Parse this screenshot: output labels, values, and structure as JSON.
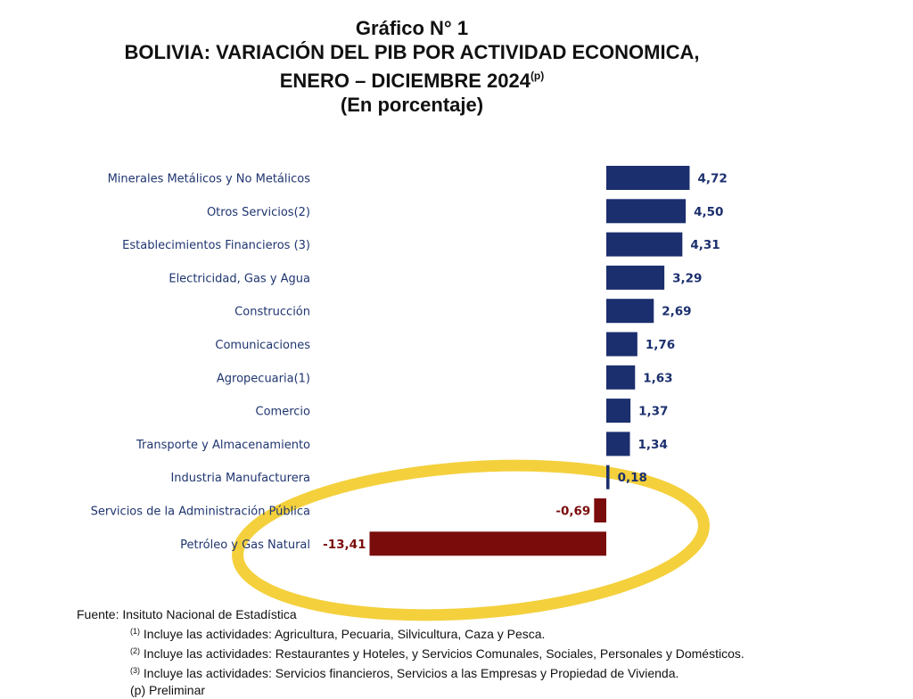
{
  "header": {
    "title_line1": "Gráfico N° 1",
    "title_line2": "BOLIVIA: VARIACIÓN DEL PIB POR ACTIVIDAD ECONOMICA,",
    "title_line3": "ENERO – DICIEMBRE 2024",
    "title_line3_sup": "(p)",
    "title_line4": "(En porcentaje)"
  },
  "chart_data": {
    "type": "bar",
    "orientation": "horizontal",
    "title": "BOLIVIA: VARIACIÓN DEL PIB POR ACTIVIDAD ECONOMICA, ENERO – DICIEMBRE 2024(p)",
    "categories": [
      "Minerales Metálicos y No Metálicos",
      "Otros Servicios(2)",
      "Establecimientos Financieros (3)",
      "Electricidad, Gas y Agua",
      "Construcción",
      "Comunicaciones",
      "Agropecuaria(1)",
      "Comercio",
      "Transporte y Almacenamiento",
      "Industria Manufacturera",
      "Servicios de la Administración Pública",
      "Petróleo y Gas Natural"
    ],
    "values": [
      4.72,
      4.5,
      4.31,
      3.29,
      2.69,
      1.76,
      1.63,
      1.37,
      1.34,
      0.18,
      -0.69,
      -13.41
    ],
    "value_labels": [
      "4,72",
      "4,50",
      "4,31",
      "3,29",
      "2,69",
      "1,76",
      "1,63",
      "1,37",
      "1,34",
      "0,18",
      "-0,69",
      "-13,41"
    ],
    "xlim": [
      -13.41,
      4.72
    ],
    "grid": false,
    "colors": {
      "positive": "#1b2f6e",
      "negative": "#7a0c0c",
      "highlight_ring": "#f2c81a"
    }
  },
  "footer": {
    "source": "Fuente: Insituto Nacional de Estadística",
    "notes": [
      {
        "mark": "(1)",
        "text": " Incluye las actividades: Agricultura, Pecuaria, Silvicultura, Caza y Pesca."
      },
      {
        "mark": "(2)",
        "text": " Incluye las actividades: Restaurantes y Hoteles, y Servicios Comunales, Sociales, Personales y Domésticos."
      },
      {
        "mark": "(3)",
        "text": " Incluye las actividades: Servicios financieros, Servicios a las Empresas y Propiedad de Vivienda."
      }
    ],
    "preliminary": "(p) Preliminar"
  }
}
